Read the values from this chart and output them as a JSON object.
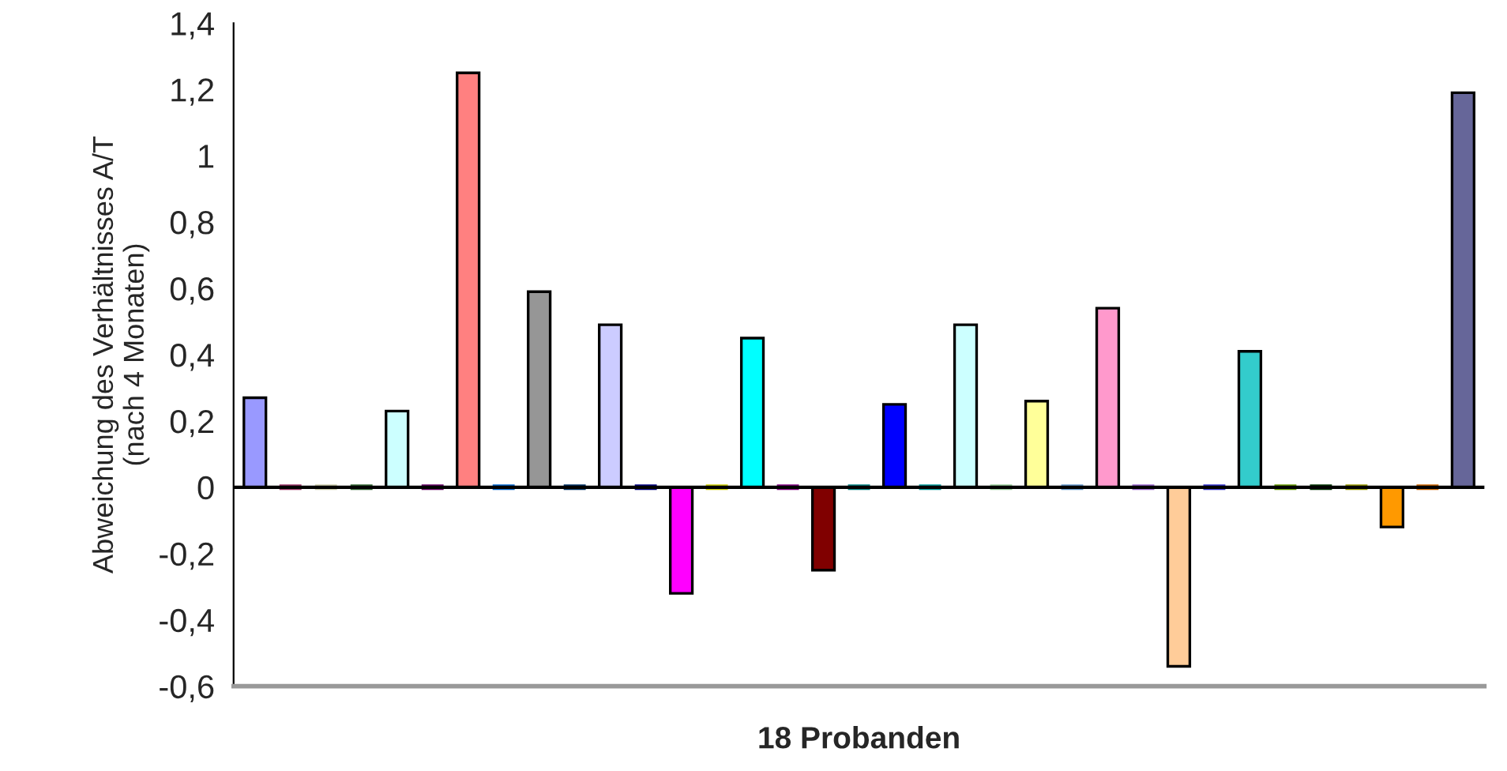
{
  "chart_data": {
    "type": "bar",
    "xlabel": "18 Probanden",
    "ylabel": "Abweichung des Verhältnisses A/T\n(nach 4 Monaten)",
    "categories": [
      null,
      null,
      null,
      null,
      null,
      null,
      null,
      null,
      null,
      null,
      null,
      null,
      null,
      null,
      null,
      null,
      null,
      null,
      null,
      null,
      null,
      null,
      null,
      null,
      null,
      null,
      null,
      null,
      null,
      null,
      null,
      null,
      null,
      null,
      null
    ],
    "values": [
      0.27,
      0,
      0,
      0,
      0.23,
      0,
      1.25,
      0,
      0.59,
      0,
      0.49,
      0,
      -0.32,
      0,
      0.45,
      0,
      -0.25,
      0,
      0.25,
      0,
      0.49,
      0,
      0.26,
      0,
      0.54,
      0,
      -0.54,
      0,
      0.41,
      0,
      0,
      0,
      -0.12,
      0,
      1.19
    ],
    "colors": [
      "#9999ff",
      "#993366",
      "#ccccaa",
      "#336633",
      "#ccffff",
      "#660066",
      "#ff8080",
      "#0066cc",
      "#969696",
      "#003366",
      "#ccccff",
      "#000080",
      "#ff00ff",
      "#cccc00",
      "#00ffff",
      "#800080",
      "#800000",
      "#008080",
      "#0000ff",
      "#009999",
      "#ccffff",
      "#99cc99",
      "#ffff99",
      "#6699cc",
      "#ff99cc",
      "#9966cc",
      "#ffcc99",
      "#3333cc",
      "#33cccc",
      "#669900",
      "#003300",
      "#999900",
      "#ff9900",
      "#cc6600",
      "#666699"
    ],
    "ylim": [
      -0.6,
      1.4
    ],
    "yticks": [
      {
        "value": -0.6,
        "label": "-0,6"
      },
      {
        "value": -0.4,
        "label": "-0,4"
      },
      {
        "value": -0.2,
        "label": "-0,2"
      },
      0,
      {
        "value": 0.2,
        "label": "0,2"
      },
      {
        "value": 0.4,
        "label": "0,4"
      },
      {
        "value": 0.6,
        "label": "0,6"
      },
      {
        "value": 0.8,
        "label": "0,8"
      },
      1,
      {
        "value": 1.2,
        "label": "1,2"
      },
      {
        "value": 1.4,
        "label": "1,4"
      }
    ],
    "ref_lines": [
      {
        "axis": "y",
        "value": 0,
        "color": "#000000"
      }
    ],
    "tick_labels": "y",
    "grid": false,
    "legend": false
  }
}
